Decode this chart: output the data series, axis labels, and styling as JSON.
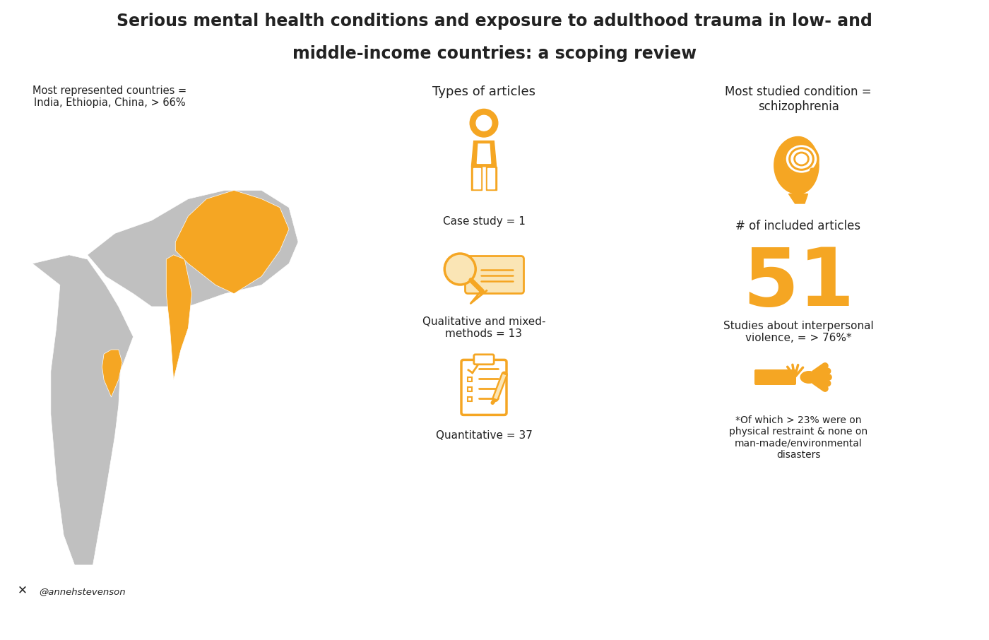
{
  "title_line1": "Serious mental health conditions and exposure to adulthood trauma in low- and",
  "title_line2": "middle-income countries: a scoping review",
  "title_fontsize": 17,
  "bg_color": "#ffffff",
  "text_color": "#222222",
  "orange_color": "#F5A623",
  "left_label": "Most represented countries =\nIndia, Ethiopia, China, > 66%",
  "center_label": "Types of articles",
  "right_label_top": "Most studied condition =\nschizophrenia",
  "case_study_label": "Case study = 1",
  "qual_label": "Qualitative and mixed-\nmethods = 13",
  "quant_label": "Quantitative = 37",
  "articles_label": "# of included articles",
  "articles_value": "51",
  "violence_label": "Studies about interpersonal\nviolence, = > 76%*",
  "footnote_label": "*Of which > 23% were on\nphysical restraint & none on\nman-made/environmental\ndisasters",
  "twitter_handle": "@annehstevenson",
  "map_highlighted": [
    "India",
    "Ethiopia",
    "China"
  ],
  "map_color_highlighted": "#F5A623",
  "map_color_base": "#C0C0C0",
  "map_xlim": [
    -20,
    145
  ],
  "map_ylim": [
    -40,
    60
  ]
}
